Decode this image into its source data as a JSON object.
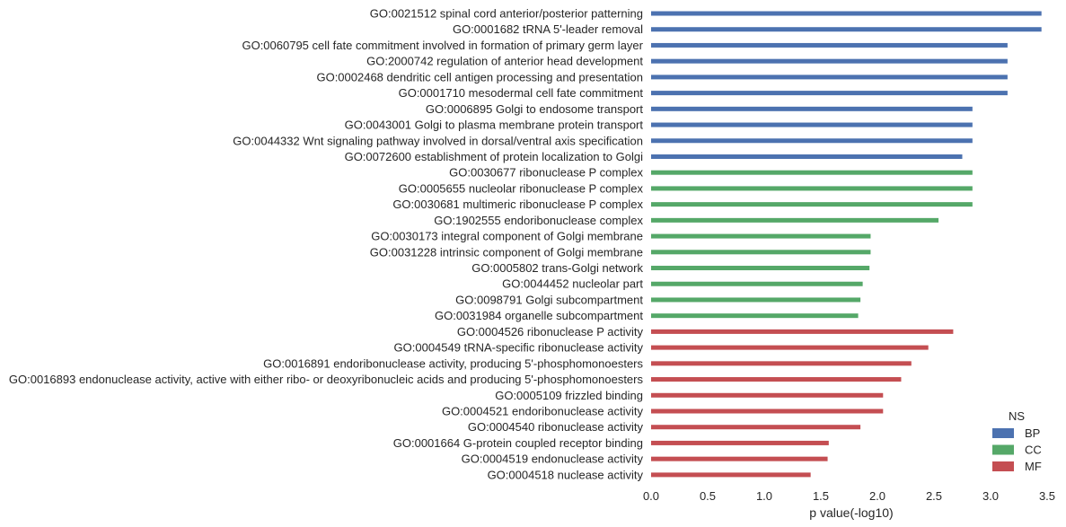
{
  "chart_data": {
    "type": "bar",
    "orientation": "horizontal",
    "xlabel": "p value(-log10)",
    "ylabel": "",
    "xlim": [
      0,
      3.5
    ],
    "xticks": [
      "0.0",
      "0.5",
      "1.0",
      "1.5",
      "2.0",
      "2.5",
      "3.0",
      "3.5"
    ],
    "grid": false,
    "legend": {
      "title": "NS",
      "position": "bottom-right",
      "entries": [
        {
          "name": "BP",
          "color": "#4c72b0"
        },
        {
          "name": "CC",
          "color": "#55a868"
        },
        {
          "name": "MF",
          "color": "#c44e52"
        }
      ]
    },
    "series": [
      {
        "name": "BP",
        "color": "#4c72b0",
        "items": [
          {
            "label": "GO:0021512 spinal cord anterior/posterior patterning",
            "value": 3.45
          },
          {
            "label": "GO:0001682 tRNA 5'-leader removal",
            "value": 3.45
          },
          {
            "label": "GO:0060795 cell fate commitment involved in formation of primary germ layer",
            "value": 3.15
          },
          {
            "label": "GO:2000742 regulation of anterior head development",
            "value": 3.15
          },
          {
            "label": "GO:0002468 dendritic cell antigen processing and presentation",
            "value": 3.15
          },
          {
            "label": "GO:0001710 mesodermal cell fate commitment",
            "value": 3.15
          },
          {
            "label": "GO:0006895 Golgi to endosome transport",
            "value": 2.84
          },
          {
            "label": "GO:0043001 Golgi to plasma membrane protein transport",
            "value": 2.84
          },
          {
            "label": "GO:0044332 Wnt signaling pathway involved in dorsal/ventral axis specification",
            "value": 2.84
          },
          {
            "label": "GO:0072600 establishment of protein localization to Golgi",
            "value": 2.75
          }
        ]
      },
      {
        "name": "CC",
        "color": "#55a868",
        "items": [
          {
            "label": "GO:0030677 ribonuclease P complex",
            "value": 2.84
          },
          {
            "label": "GO:0005655 nucleolar ribonuclease P complex",
            "value": 2.84
          },
          {
            "label": "GO:0030681 multimeric ribonuclease P complex",
            "value": 2.84
          },
          {
            "label": "GO:1902555 endoribonuclease complex",
            "value": 2.54
          },
          {
            "label": "GO:0030173 integral component of Golgi membrane",
            "value": 1.94
          },
          {
            "label": "GO:0031228 intrinsic component of Golgi membrane",
            "value": 1.94
          },
          {
            "label": "GO:0005802 trans-Golgi network",
            "value": 1.93
          },
          {
            "label": "GO:0044452 nucleolar part",
            "value": 1.87
          },
          {
            "label": "GO:0098791 Golgi subcompartment",
            "value": 1.85
          },
          {
            "label": "GO:0031984 organelle subcompartment",
            "value": 1.83
          }
        ]
      },
      {
        "name": "MF",
        "color": "#c44e52",
        "items": [
          {
            "label": "GO:0004526 ribonuclease P activity",
            "value": 2.67
          },
          {
            "label": "GO:0004549 tRNA-specific ribonuclease activity",
            "value": 2.45
          },
          {
            "label": "GO:0016891 endoribonuclease activity, producing 5'-phosphomonoesters",
            "value": 2.3
          },
          {
            "label": "GO:0016893 endonuclease activity, active with either ribo- or deoxyribonucleic acids and producing 5'-phosphomonoesters",
            "value": 2.21
          },
          {
            "label": "GO:0005109 frizzled binding",
            "value": 2.05
          },
          {
            "label": "GO:0004521 endoribonuclease activity",
            "value": 2.05
          },
          {
            "label": "GO:0004540 ribonuclease activity",
            "value": 1.85
          },
          {
            "label": "GO:0001664 G-protein coupled receptor binding",
            "value": 1.57
          },
          {
            "label": "GO:0004519 endonuclease activity",
            "value": 1.56
          },
          {
            "label": "GO:0004518 nuclease activity",
            "value": 1.41
          }
        ]
      }
    ]
  }
}
